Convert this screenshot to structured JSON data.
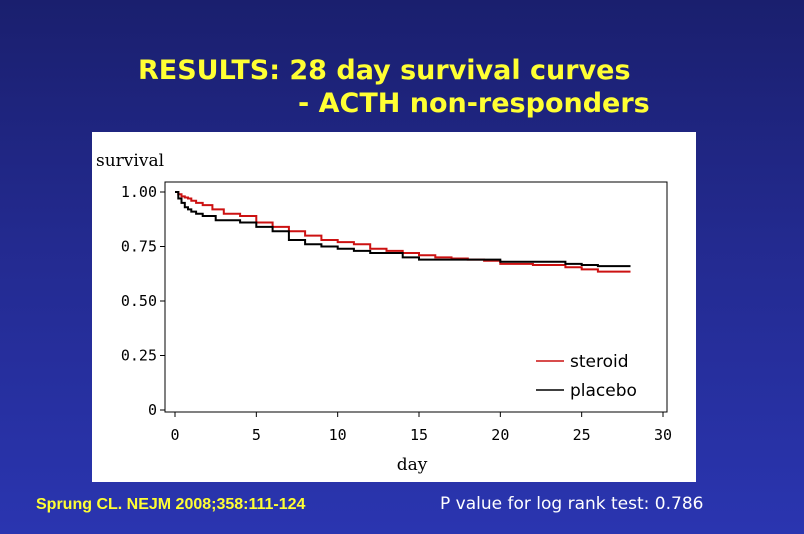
{
  "title": {
    "line1": "RESULTS: 28 day survival curves",
    "line2": "- ACTH non-responders"
  },
  "footer": {
    "citation": "Sprung CL.  NEJM 2008;358:111-124",
    "pvalue": "P value for log rank test: 0.786"
  },
  "colors": {
    "steroid": "#cc1111",
    "placebo": "#000000"
  },
  "chart_data": {
    "type": "line",
    "title": "",
    "xlabel": "day",
    "ylabel": "survival",
    "xlim": [
      0,
      30
    ],
    "ylim": [
      0,
      1
    ],
    "x_ticks": [
      0,
      5,
      10,
      15,
      20,
      25,
      30
    ],
    "x_tick_labels": [
      "0",
      "5",
      "10",
      "15",
      "20",
      "25",
      "30"
    ],
    "y_ticks": [
      0,
      0.25,
      0.5,
      0.75,
      1.0
    ],
    "y_tick_labels": [
      "0",
      "0.25",
      "0.50",
      "0.75",
      "1.00"
    ],
    "legend": [
      "steroid",
      "placebo"
    ],
    "legend_position": "bottom-right",
    "series": [
      {
        "name": "steroid",
        "color": "#cc1111",
        "step": true,
        "x": [
          0,
          0.2,
          0.4,
          0.6,
          0.8,
          1.0,
          1.3,
          1.7,
          2.3,
          3.0,
          4.0,
          5.0,
          6.0,
          7.0,
          8.0,
          9.0,
          10.0,
          11.0,
          12.0,
          13.0,
          14.0,
          15.0,
          16.0,
          17.0,
          18.0,
          19.0,
          20.0,
          22.0,
          24.0,
          25.0,
          26.0,
          28.0
        ],
        "y": [
          1.0,
          0.99,
          0.98,
          0.975,
          0.97,
          0.96,
          0.95,
          0.94,
          0.92,
          0.9,
          0.89,
          0.86,
          0.84,
          0.82,
          0.8,
          0.78,
          0.77,
          0.76,
          0.74,
          0.73,
          0.72,
          0.71,
          0.7,
          0.695,
          0.69,
          0.685,
          0.67,
          0.665,
          0.655,
          0.645,
          0.635,
          0.635
        ]
      },
      {
        "name": "placebo",
        "color": "#000000",
        "step": true,
        "x": [
          0,
          0.2,
          0.4,
          0.6,
          0.8,
          1.0,
          1.3,
          1.7,
          2.5,
          4.0,
          5.0,
          6.0,
          7.0,
          8.0,
          9.0,
          10.0,
          11.0,
          12.0,
          14.0,
          15.0,
          18.0,
          20.0,
          23.0,
          24.0,
          25.0,
          26.0,
          28.0
        ],
        "y": [
          1.0,
          0.97,
          0.95,
          0.93,
          0.92,
          0.91,
          0.9,
          0.89,
          0.87,
          0.86,
          0.84,
          0.82,
          0.78,
          0.76,
          0.75,
          0.74,
          0.73,
          0.72,
          0.7,
          0.69,
          0.69,
          0.68,
          0.68,
          0.67,
          0.665,
          0.66,
          0.66
        ]
      }
    ]
  }
}
